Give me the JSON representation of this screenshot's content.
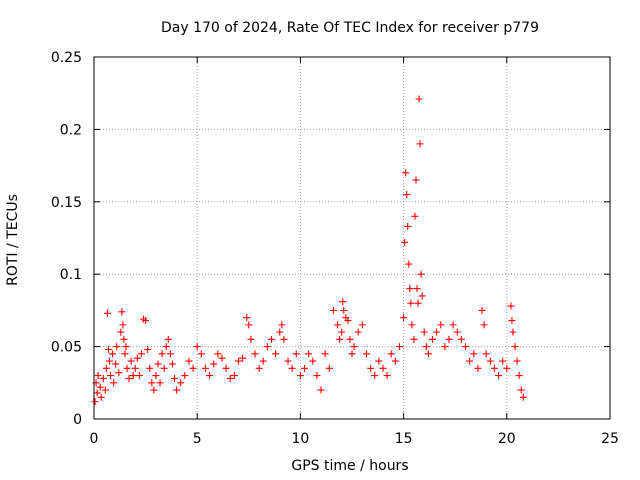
{
  "chart_data": {
    "type": "scatter",
    "title": "Day 170 of 2024, Rate Of TEC Index for receiver p779",
    "xlabel": "GPS time / hours",
    "ylabel": "ROTI / TECUs",
    "xlim": [
      0,
      25
    ],
    "ylim": [
      0,
      0.25
    ],
    "x_ticks": [
      0,
      5,
      10,
      15,
      20,
      25
    ],
    "x_tick_labels": [
      "0",
      "5",
      "10",
      "15",
      "20",
      "25"
    ],
    "y_ticks": [
      0,
      0.05,
      0.1,
      0.15,
      0.2,
      0.25
    ],
    "y_tick_labels": [
      "0",
      "0.05",
      "0.1",
      "0.15",
      "0.2",
      "0.25"
    ],
    "grid": true,
    "marker": "+",
    "marker_color": "#ff0000",
    "series": [
      {
        "name": "ROTI",
        "points": [
          [
            0.05,
            0.012
          ],
          [
            0.1,
            0.025
          ],
          [
            0.15,
            0.018
          ],
          [
            0.2,
            0.03
          ],
          [
            0.3,
            0.022
          ],
          [
            0.35,
            0.015
          ],
          [
            0.45,
            0.028
          ],
          [
            0.55,
            0.02
          ],
          [
            0.6,
            0.035
          ],
          [
            0.65,
            0.073
          ],
          [
            0.7,
            0.048
          ],
          [
            0.75,
            0.04
          ],
          [
            0.8,
            0.03
          ],
          [
            0.9,
            0.045
          ],
          [
            0.95,
            0.025
          ],
          [
            1.05,
            0.038
          ],
          [
            1.1,
            0.05
          ],
          [
            1.2,
            0.032
          ],
          [
            1.3,
            0.06
          ],
          [
            1.35,
            0.074
          ],
          [
            1.4,
            0.065
          ],
          [
            1.45,
            0.055
          ],
          [
            1.5,
            0.045
          ],
          [
            1.55,
            0.05
          ],
          [
            1.6,
            0.035
          ],
          [
            1.7,
            0.028
          ],
          [
            1.8,
            0.04
          ],
          [
            1.9,
            0.03
          ],
          [
            2.0,
            0.035
          ],
          [
            2.1,
            0.042
          ],
          [
            2.2,
            0.03
          ],
          [
            2.3,
            0.045
          ],
          [
            2.4,
            0.069
          ],
          [
            2.5,
            0.068
          ],
          [
            2.6,
            0.048
          ],
          [
            2.7,
            0.035
          ],
          [
            2.8,
            0.025
          ],
          [
            2.9,
            0.02
          ],
          [
            3.0,
            0.03
          ],
          [
            3.1,
            0.038
          ],
          [
            3.2,
            0.025
          ],
          [
            3.3,
            0.045
          ],
          [
            3.4,
            0.035
          ],
          [
            3.5,
            0.05
          ],
          [
            3.6,
            0.055
          ],
          [
            3.7,
            0.045
          ],
          [
            3.8,
            0.038
          ],
          [
            3.9,
            0.028
          ],
          [
            4.0,
            0.02
          ],
          [
            4.2,
            0.025
          ],
          [
            4.4,
            0.03
          ],
          [
            4.6,
            0.04
          ],
          [
            4.8,
            0.035
          ],
          [
            5.0,
            0.05
          ],
          [
            5.2,
            0.045
          ],
          [
            5.4,
            0.035
          ],
          [
            5.6,
            0.03
          ],
          [
            5.8,
            0.038
          ],
          [
            6.0,
            0.045
          ],
          [
            6.2,
            0.042
          ],
          [
            6.4,
            0.035
          ],
          [
            6.6,
            0.028
          ],
          [
            6.8,
            0.03
          ],
          [
            7.0,
            0.04
          ],
          [
            7.2,
            0.042
          ],
          [
            7.4,
            0.07
          ],
          [
            7.5,
            0.065
          ],
          [
            7.6,
            0.055
          ],
          [
            7.8,
            0.045
          ],
          [
            8.0,
            0.035
          ],
          [
            8.2,
            0.04
          ],
          [
            8.4,
            0.05
          ],
          [
            8.6,
            0.055
          ],
          [
            8.8,
            0.045
          ],
          [
            9.0,
            0.06
          ],
          [
            9.1,
            0.065
          ],
          [
            9.2,
            0.055
          ],
          [
            9.4,
            0.04
          ],
          [
            9.6,
            0.035
          ],
          [
            9.8,
            0.045
          ],
          [
            10.0,
            0.03
          ],
          [
            10.2,
            0.035
          ],
          [
            10.4,
            0.045
          ],
          [
            10.6,
            0.04
          ],
          [
            10.8,
            0.03
          ],
          [
            11.0,
            0.02
          ],
          [
            11.2,
            0.045
          ],
          [
            11.4,
            0.035
          ],
          [
            11.6,
            0.075
          ],
          [
            11.8,
            0.065
          ],
          [
            11.9,
            0.055
          ],
          [
            12.0,
            0.06
          ],
          [
            12.05,
            0.081
          ],
          [
            12.1,
            0.075
          ],
          [
            12.2,
            0.07
          ],
          [
            12.3,
            0.068
          ],
          [
            12.4,
            0.055
          ],
          [
            12.5,
            0.045
          ],
          [
            12.6,
            0.05
          ],
          [
            12.8,
            0.06
          ],
          [
            13.0,
            0.065
          ],
          [
            13.2,
            0.045
          ],
          [
            13.4,
            0.035
          ],
          [
            13.6,
            0.03
          ],
          [
            13.8,
            0.04
          ],
          [
            14.0,
            0.035
          ],
          [
            14.2,
            0.03
          ],
          [
            14.4,
            0.045
          ],
          [
            14.6,
            0.04
          ],
          [
            14.8,
            0.05
          ],
          [
            15.0,
            0.07
          ],
          [
            15.05,
            0.122
          ],
          [
            15.1,
            0.17
          ],
          [
            15.15,
            0.155
          ],
          [
            15.2,
            0.133
          ],
          [
            15.25,
            0.107
          ],
          [
            15.3,
            0.09
          ],
          [
            15.35,
            0.08
          ],
          [
            15.4,
            0.065
          ],
          [
            15.5,
            0.055
          ],
          [
            15.55,
            0.14
          ],
          [
            15.6,
            0.165
          ],
          [
            15.65,
            0.09
          ],
          [
            15.7,
            0.08
          ],
          [
            15.75,
            0.221
          ],
          [
            15.8,
            0.19
          ],
          [
            15.85,
            0.1
          ],
          [
            15.9,
            0.085
          ],
          [
            16.0,
            0.06
          ],
          [
            16.1,
            0.05
          ],
          [
            16.2,
            0.045
          ],
          [
            16.4,
            0.055
          ],
          [
            16.6,
            0.06
          ],
          [
            16.8,
            0.065
          ],
          [
            17.0,
            0.05
          ],
          [
            17.2,
            0.055
          ],
          [
            17.4,
            0.065
          ],
          [
            17.6,
            0.06
          ],
          [
            17.8,
            0.055
          ],
          [
            18.0,
            0.05
          ],
          [
            18.2,
            0.04
          ],
          [
            18.4,
            0.045
          ],
          [
            18.6,
            0.035
          ],
          [
            18.8,
            0.075
          ],
          [
            18.9,
            0.065
          ],
          [
            19.0,
            0.045
          ],
          [
            19.2,
            0.04
          ],
          [
            19.4,
            0.035
          ],
          [
            19.6,
            0.03
          ],
          [
            19.8,
            0.04
          ],
          [
            20.0,
            0.035
          ],
          [
            20.2,
            0.078
          ],
          [
            20.25,
            0.068
          ],
          [
            20.3,
            0.06
          ],
          [
            20.4,
            0.05
          ],
          [
            20.5,
            0.04
          ],
          [
            20.6,
            0.03
          ],
          [
            20.7,
            0.02
          ],
          [
            20.8,
            0.015
          ]
        ]
      }
    ]
  }
}
